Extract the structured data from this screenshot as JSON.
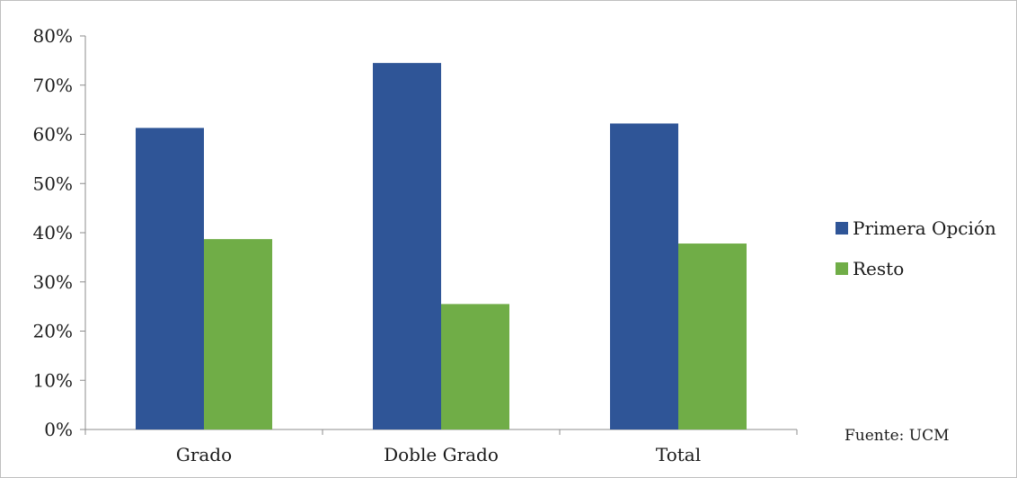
{
  "chart_data": {
    "type": "bar",
    "categories": [
      "Grado",
      "Doble Grado",
      "Total"
    ],
    "series": [
      {
        "name": "Primera Opción",
        "values": [
          61.3,
          74.5,
          62.2
        ],
        "color": "#2f5597"
      },
      {
        "name": "Resto",
        "values": [
          38.7,
          25.5,
          37.8
        ],
        "color": "#70ad47"
      }
    ],
    "y_ticks": [
      "0%",
      "10%",
      "20%",
      "30%",
      "40%",
      "50%",
      "60%",
      "70%",
      "80%"
    ],
    "ylim": [
      0,
      80
    ],
    "y_unit": "%",
    "grid": false,
    "legend_position": "right",
    "title": "",
    "xlabel": "",
    "ylabel": ""
  },
  "source_note": "Fuente: UCM"
}
